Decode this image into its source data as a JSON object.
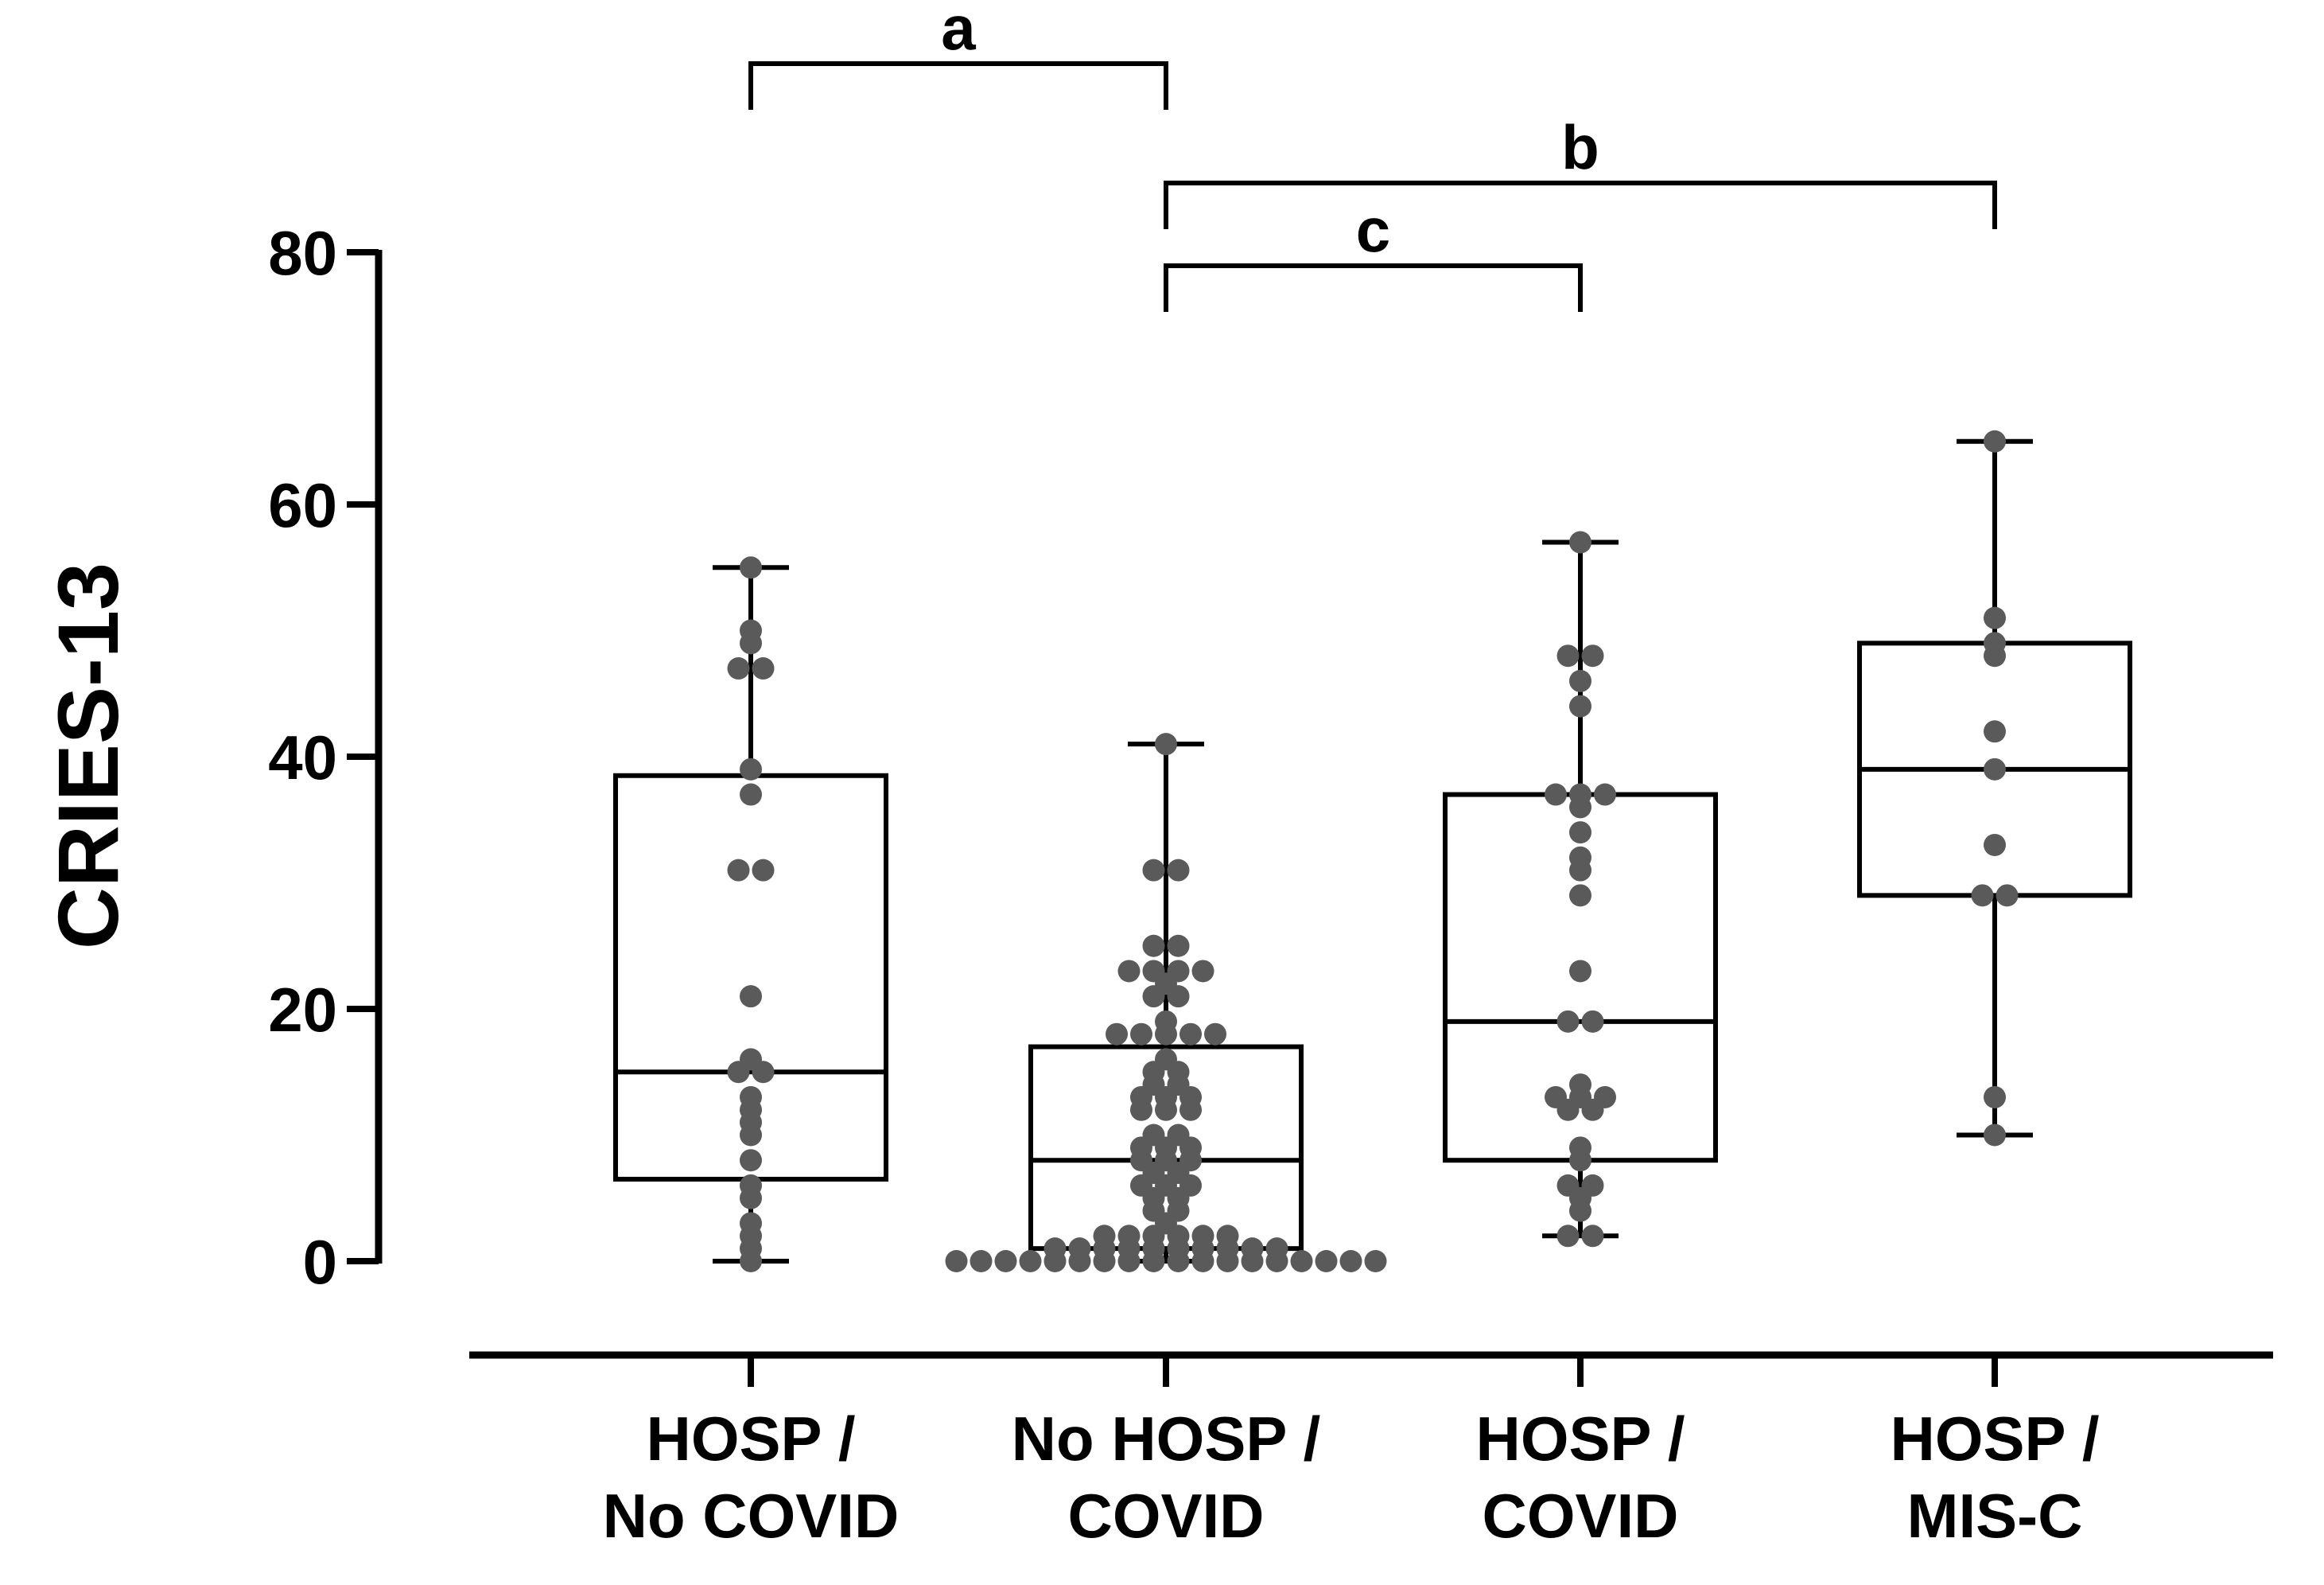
{
  "chart_data": {
    "type": "box",
    "ylabel": "CRIES-13",
    "ylim": [
      0,
      80
    ],
    "yticks": [
      0,
      20,
      40,
      60,
      80
    ],
    "ytick_labels": [
      "0",
      "20",
      "40",
      "60",
      "80"
    ],
    "grid": false,
    "groups": [
      {
        "label_lines": [
          "HOSP /",
          "No COVID"
        ],
        "whisker_low": 0,
        "q1": 6.5,
        "median": 15,
        "q3": 38.5,
        "whisker_high": 55,
        "points": [
          55,
          50,
          49,
          47,
          47,
          39,
          37,
          31,
          31,
          21,
          16,
          15,
          15,
          13,
          12,
          11,
          10,
          8,
          6,
          5,
          3,
          2,
          1,
          0
        ]
      },
      {
        "label_lines": [
          "No HOSP /",
          "COVID"
        ],
        "whisker_low": 0,
        "q1": 1,
        "median": 8,
        "q3": 17,
        "whisker_high": 41,
        "points": [
          41,
          31,
          31,
          25,
          25,
          23,
          23,
          23,
          23,
          22,
          21,
          21,
          19,
          18,
          18,
          18,
          18,
          18,
          16,
          15,
          15,
          14,
          14,
          13,
          13,
          13,
          12,
          12,
          12,
          10,
          10,
          9,
          9,
          9,
          8,
          8,
          8,
          7,
          7,
          6,
          6,
          6,
          5,
          5,
          4,
          4,
          3,
          2,
          2,
          2,
          2,
          2,
          2,
          1,
          1,
          1,
          1,
          1,
          1,
          1,
          1,
          1,
          1,
          0,
          0,
          0,
          0,
          0,
          0,
          0,
          0,
          0,
          0,
          0,
          0,
          0,
          0,
          0,
          0,
          0,
          0
        ]
      },
      {
        "label_lines": [
          "HOSP /",
          "COVID"
        ],
        "whisker_low": 2,
        "q1": 8,
        "median": 19,
        "q3": 37,
        "whisker_high": 57,
        "points": [
          57,
          48,
          48,
          46,
          44,
          37,
          37,
          37,
          36,
          34,
          32,
          31,
          29,
          23,
          19,
          19,
          14,
          13,
          13,
          13,
          12,
          12,
          9,
          8,
          6,
          6,
          5,
          4,
          2,
          2
        ]
      },
      {
        "label_lines": [
          "HOSP /",
          "MIS-C"
        ],
        "whisker_low": 10,
        "q1": 29,
        "median": 39,
        "q3": 49,
        "whisker_high": 65,
        "points": [
          65,
          51,
          49,
          48,
          42,
          39,
          33,
          29,
          29,
          13,
          10
        ]
      }
    ],
    "annotations": [
      {
        "label": "a",
        "from_group": 0,
        "to_group": 1
      },
      {
        "label": "b",
        "from_group": 1,
        "to_group": 3
      },
      {
        "label": "c",
        "from_group": 1,
        "to_group": 2
      }
    ],
    "colors": {
      "points": "#5a5a5a",
      "lines": "#000000",
      "box_fill": "#ffffff"
    }
  }
}
